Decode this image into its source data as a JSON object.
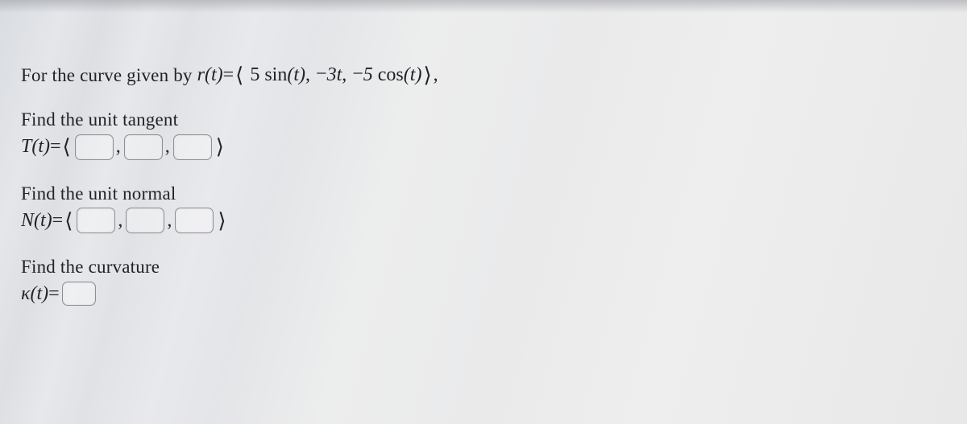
{
  "background_color": "#e8e9ec",
  "text_color": "#2a2a2e",
  "input_border_color": "#8d8f94",
  "input_border_radius": 7,
  "font_family": "Times New Roman",
  "base_fontsize": 24,
  "intro": {
    "prefix": "For the curve given by ",
    "curve_lhs": "r(t)",
    "equals": " = ",
    "open": "⟨",
    "comp1": "5 sin(t)",
    "comp2": "−3t",
    "comp3": "−5 cos(t)",
    "close": "⟩",
    "trail": ","
  },
  "q1": {
    "prompt": "Find the unit tangent",
    "lhs": "T(t)",
    "equals": " = ",
    "open": "⟨",
    "close": "⟩",
    "blank_count": 3
  },
  "q2": {
    "prompt": "Find the unit normal",
    "lhs": "N(t)",
    "equals": " = ",
    "open": "⟨",
    "close": "⟩",
    "blank_count": 3
  },
  "q3": {
    "prompt": "Find the curvature",
    "lhs": "κ(t)",
    "equals": " = ",
    "blank_count": 1
  }
}
